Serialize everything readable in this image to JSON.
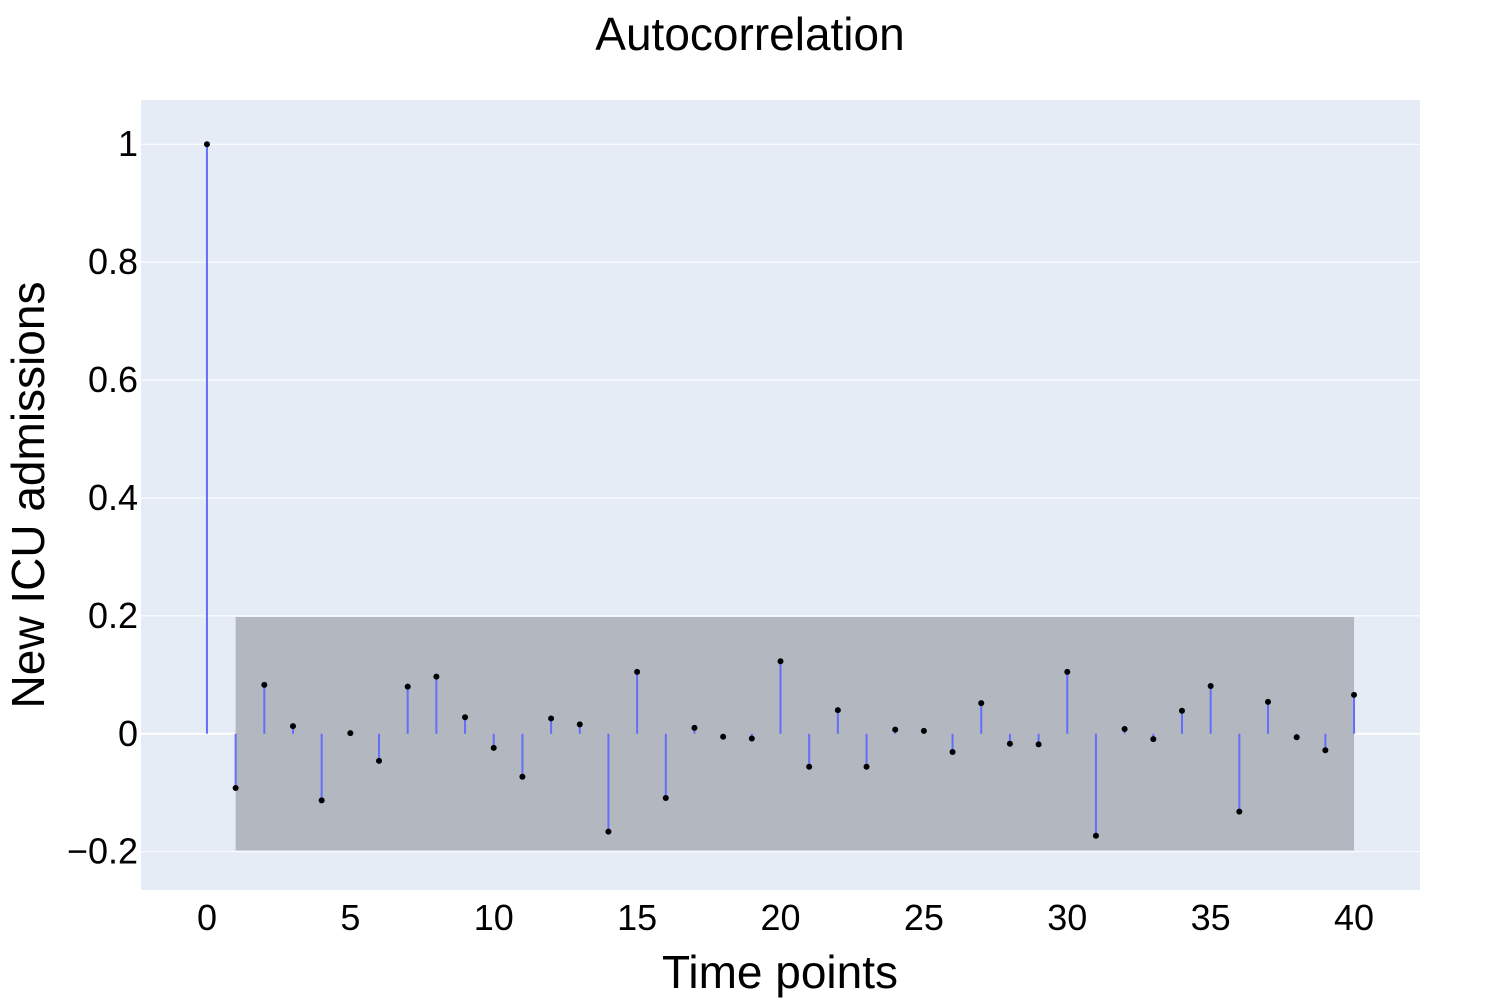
{
  "chart_data": {
    "type": "stem",
    "title": "Autocorrelation",
    "xlabel": "Time points",
    "ylabel": "New ICU admissions",
    "xlim": [
      -2.3,
      42.3
    ],
    "ylim": [
      -0.265,
      1.075
    ],
    "x_ticks": [
      0,
      5,
      10,
      15,
      20,
      25,
      30,
      35,
      40
    ],
    "x_tick_labels": [
      "0",
      "5",
      "10",
      "15",
      "20",
      "25",
      "30",
      "35",
      "40"
    ],
    "y_ticks": [
      1,
      0.8,
      0.6,
      0.4,
      0.2,
      0,
      -0.2
    ],
    "y_tick_labels": [
      "1",
      "0.8",
      "0.6",
      "0.4",
      "0.2",
      "0",
      "−0.2"
    ],
    "grid": true,
    "confidence_band": {
      "x_start": 1,
      "x_end": 40,
      "lower": -0.198,
      "upper": 0.198
    },
    "series": [
      {
        "x": [
          0,
          1,
          2,
          3,
          4,
          5,
          6,
          7,
          8,
          9,
          10,
          11,
          12,
          13,
          14,
          15,
          16,
          17,
          18,
          19,
          20,
          21,
          22,
          23,
          24,
          25,
          26,
          27,
          28,
          29,
          30,
          31,
          32,
          33,
          34,
          35,
          36,
          37,
          38,
          39,
          40
        ],
        "y": [
          1.0,
          -0.092,
          0.083,
          0.013,
          -0.113,
          0.001,
          -0.046,
          0.08,
          0.097,
          0.028,
          -0.024,
          -0.073,
          0.026,
          0.016,
          -0.166,
          0.105,
          -0.109,
          0.01,
          -0.005,
          -0.008,
          0.123,
          -0.056,
          0.04,
          -0.056,
          0.007,
          0.005,
          -0.031,
          0.052,
          -0.017,
          -0.018,
          0.105,
          -0.173,
          0.008,
          -0.009,
          0.039,
          0.081,
          -0.132,
          0.054,
          -0.006,
          -0.028,
          0.066
        ]
      }
    ],
    "colors": {
      "plot_background": "#e5ecf6",
      "gridline": "#ffffff",
      "stem": "#636efa",
      "marker": "#000000",
      "band": "#b3b7bf"
    }
  }
}
